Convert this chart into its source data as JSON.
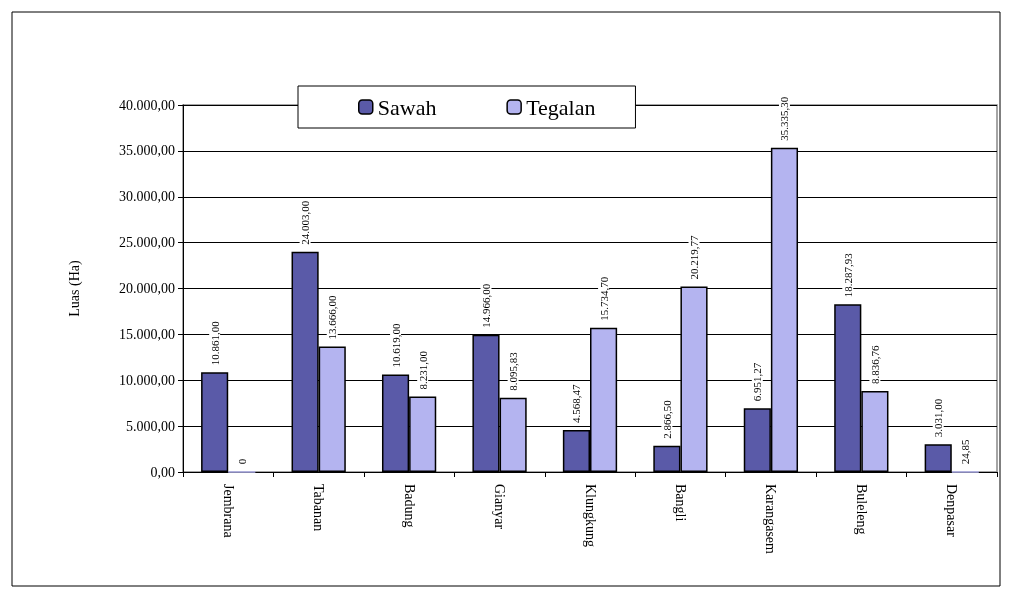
{
  "chart_data": {
    "type": "bar",
    "ylabel": "Luas (Ha)",
    "categories": [
      "Jembrana",
      "Tabanan",
      "Badung",
      "Gianyar",
      "Klungkung",
      "Bangli",
      "Karangasem",
      "Buleleng",
      "Denpasar"
    ],
    "series": [
      {
        "name": "Sawah",
        "color": "#5a5aa8",
        "values": [
          10861,
          24003,
          10619,
          14966,
          4568.47,
          2866.5,
          6951.27,
          18287.93,
          3031
        ],
        "value_labels": [
          "10.861,00",
          "24.003,00",
          "10.619,00",
          "14.966,00",
          "4.568,47",
          "2.866,50",
          "6.951,27",
          "18.287,93",
          "3.031,00"
        ]
      },
      {
        "name": "Tegalan",
        "color": "#b4b4f0",
        "values": [
          0,
          13666,
          8231,
          8095.83,
          15734.7,
          20219.77,
          35335.3,
          8836.76,
          24.85
        ],
        "value_labels": [
          "0",
          "13.666,00",
          "8.231,00",
          "8.095,83",
          "15.734,70",
          "20.219,77",
          "35.335,30",
          "8.836,76",
          "24,85"
        ]
      }
    ],
    "ylim": [
      0,
      40000
    ],
    "yticks": [
      {
        "value": 0,
        "label": "0,00"
      },
      {
        "value": 5000,
        "label": "5.000,00"
      },
      {
        "value": 10000,
        "label": "10.000,00"
      },
      {
        "value": 15000,
        "label": "15.000,00"
      },
      {
        "value": 20000,
        "label": "20.000,00"
      },
      {
        "value": 25000,
        "label": "25.000,00"
      },
      {
        "value": 30000,
        "label": "30.000,00"
      },
      {
        "value": 35000,
        "label": "35.000,00"
      },
      {
        "value": 40000,
        "label": "40.000,00"
      }
    ],
    "grid": "y",
    "legend": "top"
  }
}
